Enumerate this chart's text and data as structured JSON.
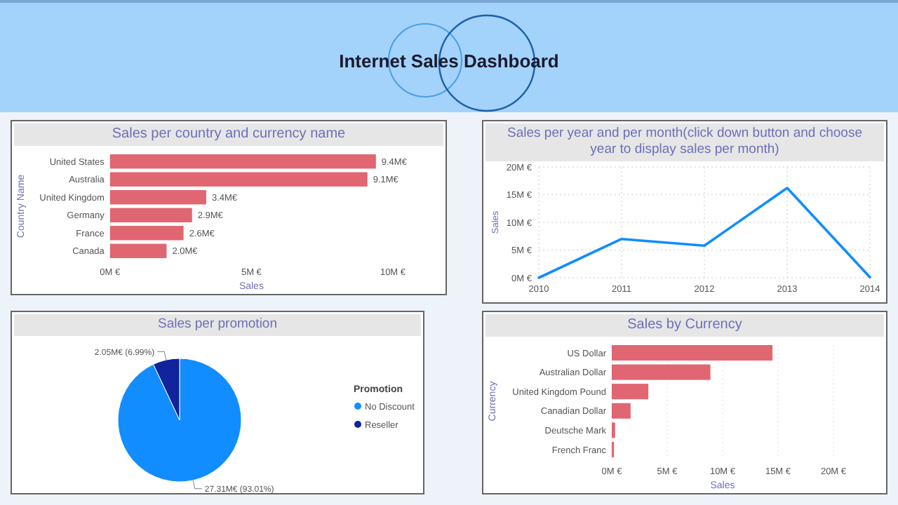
{
  "chart_data": [
    {
      "type": "other",
      "title": "Internet Sales Dashboard"
    },
    {
      "type": "bar",
      "orientation": "horizontal",
      "title": "Sales per country and currency name",
      "xlabel": "Sales",
      "ylabel": "Country Name",
      "categories": [
        "United States",
        "Australia",
        "United Kingdom",
        "Germany",
        "France",
        "Canada"
      ],
      "values": [
        9.4,
        9.1,
        3.4,
        2.9,
        2.6,
        2.0
      ],
      "color": "#e06672",
      "value_labels": [
        "9.4M€",
        "9.1M€",
        "3.4M€",
        "2.9M€",
        "2.6M€",
        "2.0M€"
      ],
      "xlim": [
        0,
        10
      ],
      "xticks": [
        {
          "value": 0,
          "label": "0M €"
        },
        {
          "value": 5,
          "label": "5M €"
        },
        {
          "value": 10,
          "label": "10M €"
        }
      ]
    },
    {
      "type": "line",
      "title": "Sales per year and per month(click down button and choose year to display sales per month)",
      "ylabel": "Sales",
      "x": [
        2010,
        2011,
        2012,
        2013,
        2014
      ],
      "series": [
        {
          "color": "#118dff",
          "values": [
            0,
            7.0,
            5.8,
            16.2,
            0.1
          ]
        }
      ],
      "xlim": [
        2010,
        2014
      ],
      "xticks": [
        2010,
        2011,
        2012,
        2013,
        2014
      ],
      "ylim": [
        0,
        20
      ],
      "yticks": [
        {
          "value": 0,
          "label": "0M €"
        },
        {
          "value": 5,
          "label": "5M €"
        },
        {
          "value": 10,
          "label": "10M €"
        },
        {
          "value": 15,
          "label": "15M €"
        },
        {
          "value": 20,
          "label": "20M €"
        }
      ],
      "grid": true
    },
    {
      "type": "pie",
      "title": "Sales per promotion",
      "legend_title": "Promotion",
      "categories": [
        "No Discount",
        "Reseller"
      ],
      "values": [
        93.01,
        6.99
      ],
      "colors": [
        "#118dff",
        "#12239e"
      ],
      "value_labels": [
        "27.31M€ (93.01%)",
        "2.05M€ (6.99%)"
      ],
      "legend": "right"
    },
    {
      "type": "bar",
      "orientation": "horizontal",
      "title": "Sales by Currency",
      "xlabel": "Sales",
      "ylabel": "Currency",
      "categories": [
        "US Dollar",
        "Australian Dollar",
        "United Kingdom Pound",
        "Canadian Dollar",
        "Deutsche Mark",
        "French Franc"
      ],
      "values": [
        14.5,
        8.9,
        3.3,
        1.7,
        0.3,
        0.2
      ],
      "color": "#e06672",
      "xlim": [
        0,
        20
      ],
      "xticks": [
        {
          "value": 0,
          "label": "0M €"
        },
        {
          "value": 5,
          "label": "5M €"
        },
        {
          "value": 10,
          "label": "10M €"
        },
        {
          "value": 15,
          "label": "15M €"
        },
        {
          "value": 20,
          "label": "20M €"
        }
      ],
      "grid": "x"
    }
  ]
}
